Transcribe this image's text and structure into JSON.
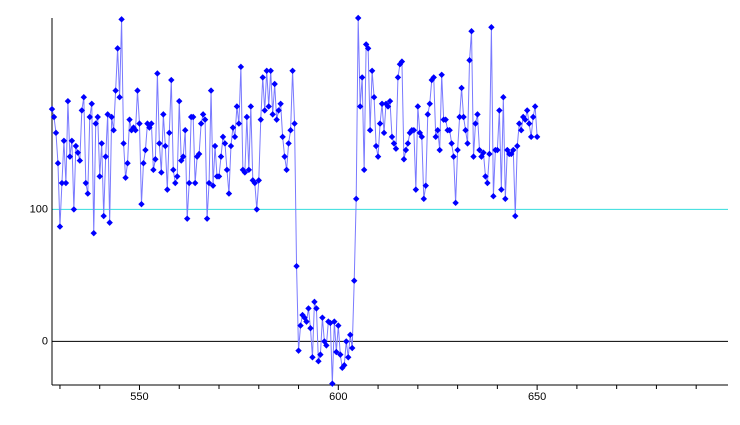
{
  "chart_data": {
    "type": "line",
    "x": [
      528,
      528.5,
      529,
      529.5,
      530,
      530.5,
      531,
      531.5,
      532,
      532.5,
      533,
      533.5,
      534,
      534.5,
      535,
      535.5,
      536,
      536.5,
      537,
      537.5,
      538,
      538.5,
      539,
      539.5,
      540,
      540.5,
      541,
      541.5,
      542,
      542.5,
      543,
      543.5,
      544,
      544.5,
      545,
      545.5,
      546,
      546.5,
      547,
      547.5,
      548,
      548.5,
      549,
      549.5,
      550,
      550.5,
      551,
      551.5,
      552,
      552.5,
      553,
      553.5,
      554,
      554.5,
      555,
      555.5,
      556,
      556.5,
      557,
      557.5,
      558,
      558.5,
      559,
      559.5,
      560,
      560.5,
      561,
      561.5,
      562,
      562.5,
      563,
      563.5,
      564,
      564.5,
      565,
      565.5,
      566,
      566.5,
      567,
      567.5,
      568,
      568.5,
      569,
      569.5,
      570,
      570.5,
      571,
      571.5,
      572,
      572.5,
      573,
      573.5,
      574,
      574.5,
      575,
      575.5,
      576,
      576.5,
      577,
      577.5,
      578,
      578.5,
      579,
      579.5,
      580,
      580.5,
      581,
      581.5,
      582,
      582.5,
      583,
      583.5,
      584,
      584.5,
      585,
      585.5,
      586,
      586.5,
      587,
      587.5,
      588,
      588.5,
      589,
      589.5,
      590,
      590.5,
      591,
      591.5,
      592,
      592.5,
      593,
      593.5,
      594,
      594.5,
      595,
      595.5,
      596,
      596.5,
      597,
      597.5,
      598,
      598.5,
      599,
      599.5,
      600,
      600.5,
      601,
      601.5,
      602,
      602.5,
      603,
      603.5,
      604,
      604.5,
      605,
      605.5,
      606,
      606.5,
      607,
      607.5,
      608,
      608.5,
      609,
      609.5,
      610,
      610.5,
      611,
      611.5,
      612,
      612.5,
      613,
      613.5,
      614,
      614.5,
      615,
      615.5,
      616,
      616.5,
      617,
      617.5,
      618,
      618.5,
      619,
      619.5,
      620,
      620.5,
      621,
      621.5,
      622,
      622.5,
      623,
      623.5,
      624,
      624.5,
      625,
      625.5,
      626,
      626.5,
      627,
      627.5,
      628,
      628.5,
      629,
      629.5,
      630,
      630.5,
      631,
      631.5,
      632,
      632.5,
      633,
      633.5,
      634,
      634.5,
      635,
      635.5,
      636,
      636.5,
      637,
      637.5,
      638,
      638.5,
      639,
      639.5,
      640,
      640.5,
      641,
      641.5,
      642,
      642.5,
      643,
      643.5,
      644,
      644.5,
      645,
      645.5,
      646,
      646.5,
      647,
      647.5,
      648,
      648.5,
      649,
      649.5,
      650
    ],
    "series": [
      {
        "color": "#0000ff",
        "line_color": "#7a7aff",
        "values": [
          176,
          170,
          158,
          135,
          87,
          120,
          152,
          120,
          182,
          140,
          152,
          100,
          148,
          143,
          137,
          175,
          185,
          120,
          112,
          170,
          180,
          82,
          165,
          170,
          125,
          150,
          95,
          140,
          172,
          90,
          170,
          160,
          190,
          222,
          185,
          244,
          150,
          124,
          135,
          168,
          160,
          162,
          160,
          190,
          165,
          104,
          135,
          145,
          165,
          162,
          165,
          130,
          138,
          203,
          150,
          128,
          172,
          148,
          115,
          158,
          198,
          130,
          120,
          125,
          182,
          137,
          140,
          160,
          93,
          120,
          170,
          170,
          120,
          140,
          142,
          165,
          172,
          168,
          93,
          120,
          190,
          118,
          148,
          125,
          125,
          140,
          155,
          150,
          130,
          112,
          148,
          162,
          155,
          178,
          165,
          208,
          130,
          128,
          170,
          130,
          178,
          122,
          120,
          100,
          122,
          168,
          200,
          175,
          205,
          178,
          205,
          172,
          195,
          168,
          175,
          180,
          155,
          140,
          130,
          150,
          160,
          205,
          165,
          57,
          -7,
          12,
          20,
          18,
          15,
          25,
          10,
          -12,
          30,
          25,
          -15,
          -10,
          18,
          0,
          -3,
          15,
          14,
          -32,
          15,
          -8,
          12,
          -10,
          -20,
          -18,
          0,
          -12,
          5,
          -5,
          46,
          108,
          245,
          178,
          200,
          130,
          225,
          222,
          160,
          205,
          185,
          148,
          140,
          165,
          180,
          158,
          180,
          178,
          182,
          155,
          150,
          146,
          200,
          210,
          212,
          138,
          145,
          150,
          158,
          160,
          160,
          115,
          178,
          158,
          155,
          108,
          118,
          172,
          180,
          198,
          200,
          155,
          160,
          145,
          202,
          168,
          168,
          160,
          160,
          150,
          140,
          105,
          145,
          170,
          192,
          170,
          160,
          150,
          213,
          235,
          140,
          165,
          172,
          145,
          140,
          143,
          125,
          120,
          142,
          238,
          110,
          145,
          145,
          175,
          115,
          185,
          108,
          145,
          142,
          142,
          145,
          95,
          148,
          165,
          160,
          170,
          168,
          175,
          165,
          155,
          170,
          178,
          155
        ]
      }
    ],
    "xlim": [
      528,
      698
    ],
    "ylim": [
      -33,
      245
    ],
    "xticks": [
      550,
      600,
      650
    ],
    "xminorticks": [
      530,
      540,
      560,
      570,
      580,
      590,
      610,
      620,
      630,
      640,
      660,
      670,
      680,
      690
    ],
    "yticks": [
      0,
      100
    ],
    "hlines": [
      {
        "value": 0,
        "color": "#000000"
      },
      {
        "value": 100,
        "color": "#33dddd"
      }
    ]
  }
}
